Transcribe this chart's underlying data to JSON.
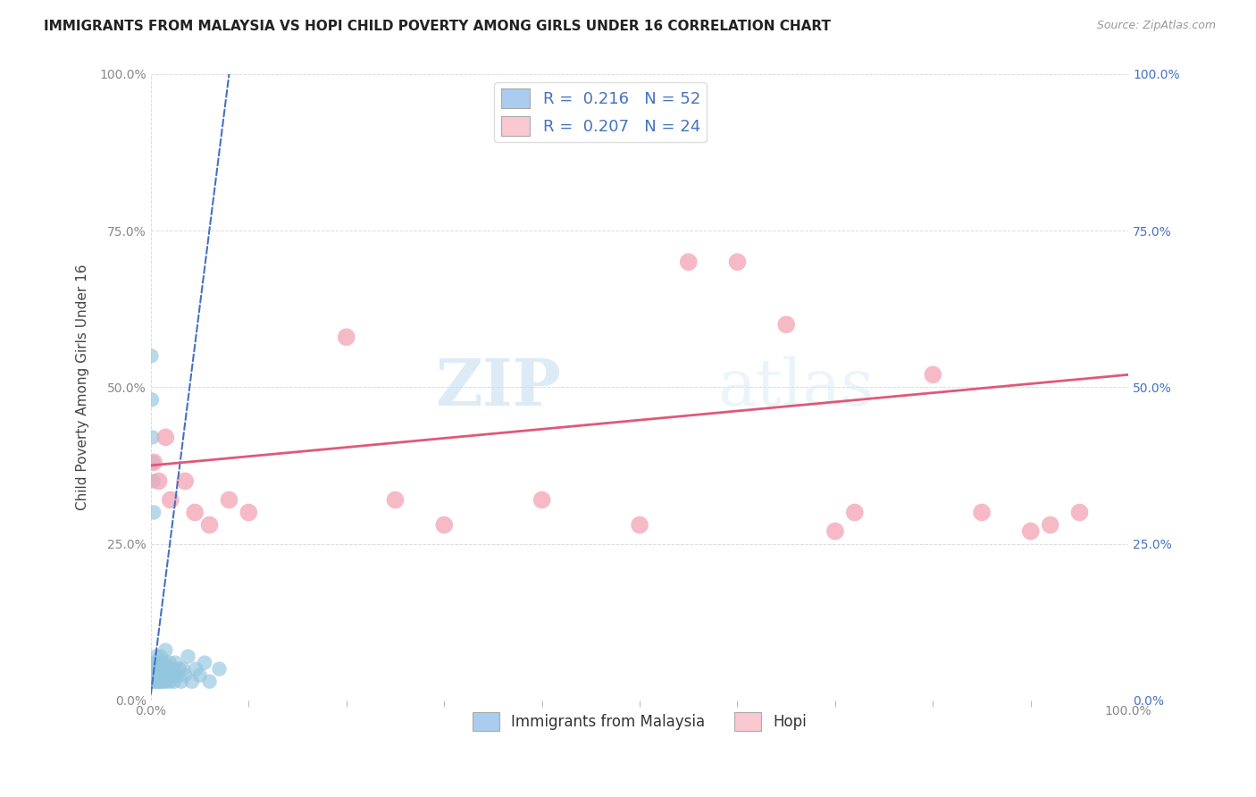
{
  "title": "IMMIGRANTS FROM MALAYSIA VS HOPI CHILD POVERTY AMONG GIRLS UNDER 16 CORRELATION CHART",
  "source": "Source: ZipAtlas.com",
  "ylabel": "Child Poverty Among Girls Under 16",
  "legend1_label": "Immigrants from Malaysia",
  "legend2_label": "Hopi",
  "R1": 0.216,
  "N1": 52,
  "R2": 0.207,
  "N2": 24,
  "color_blue": "#92c5de",
  "color_pink": "#f4a3b5",
  "color_trendline_blue": "#4472c4",
  "color_trendline_pink": "#e05878",
  "watermark_zip": "ZIP",
  "watermark_atlas": "atlas",
  "blue_points_x": [
    0.05,
    0.1,
    0.15,
    0.2,
    0.25,
    0.3,
    0.35,
    0.4,
    0.45,
    0.5,
    0.55,
    0.6,
    0.65,
    0.7,
    0.75,
    0.8,
    0.85,
    0.9,
    0.95,
    1.0,
    1.05,
    1.1,
    1.15,
    1.2,
    1.25,
    1.3,
    1.35,
    1.4,
    1.45,
    1.5,
    1.6,
    1.7,
    1.8,
    1.9,
    2.0,
    2.1,
    2.2,
    2.3,
    2.4,
    2.5,
    2.7,
    2.9,
    3.1,
    3.3,
    3.5,
    3.8,
    4.2,
    4.6,
    5.0,
    5.5,
    6.0,
    7.0
  ],
  "blue_points_y": [
    3,
    5,
    4,
    3,
    6,
    4,
    5,
    3,
    4,
    7,
    3,
    5,
    4,
    6,
    3,
    5,
    4,
    3,
    5,
    7,
    4,
    6,
    3,
    5,
    4,
    3,
    6,
    5,
    4,
    8,
    3,
    5,
    4,
    6,
    3,
    4,
    5,
    4,
    3,
    6,
    4,
    5,
    3,
    5,
    4,
    7,
    3,
    5,
    4,
    6,
    3,
    5
  ],
  "blue_points_x2": [
    0.05,
    0.1,
    0.15,
    0.2,
    0.25,
    0.3
  ],
  "blue_points_y2": [
    55,
    48,
    42,
    38,
    35,
    30
  ],
  "pink_points_x": [
    0.3,
    0.8,
    1.5,
    2.0,
    3.5,
    4.5,
    6.0,
    8.0,
    10.0,
    20.0,
    25.0,
    30.0,
    40.0,
    50.0,
    55.0,
    60.0,
    65.0,
    70.0,
    72.0,
    80.0,
    85.0,
    90.0,
    92.0,
    95.0
  ],
  "pink_points_y": [
    38,
    35,
    42,
    32,
    35,
    30,
    28,
    32,
    30,
    58,
    32,
    28,
    32,
    28,
    70,
    70,
    60,
    27,
    30,
    52,
    30,
    27,
    28,
    30
  ],
  "blue_trend_x0": 0.0,
  "blue_trend_y0": 1.0,
  "blue_trend_x1": 8.0,
  "blue_trend_y1": 100.0,
  "pink_trend_x0": 0.0,
  "pink_trend_y0": 37.5,
  "pink_trend_x1": 100.0,
  "pink_trend_y1": 52.0,
  "xlim": [
    0,
    100
  ],
  "ylim": [
    0,
    100
  ],
  "xtick_labels": [
    "0.0%",
    "",
    "",
    "",
    "",
    "",
    "",
    "",
    "100.0%"
  ],
  "xtick_vals": [
    0,
    12.5,
    25,
    37.5,
    50,
    62.5,
    75,
    87.5,
    100
  ],
  "ytick_labels": [
    "0.0%",
    "25.0%",
    "50.0%",
    "75.0%",
    "100.0%"
  ],
  "ytick_vals": [
    0,
    25,
    50,
    75,
    100
  ],
  "right_ytick_labels": [
    "0.0%",
    "25.0%",
    "50.0%",
    "75.0%",
    "100.0%"
  ],
  "right_ytick_vals": [
    0,
    25,
    50,
    75,
    100
  ],
  "background_color": "#ffffff",
  "grid_color": "#cccccc",
  "title_color": "#222222",
  "axis_label_color": "#444444",
  "tick_color": "#888888",
  "legend_box_color_blue": "#aaccee",
  "legend_box_color_pink": "#f9c8d0"
}
